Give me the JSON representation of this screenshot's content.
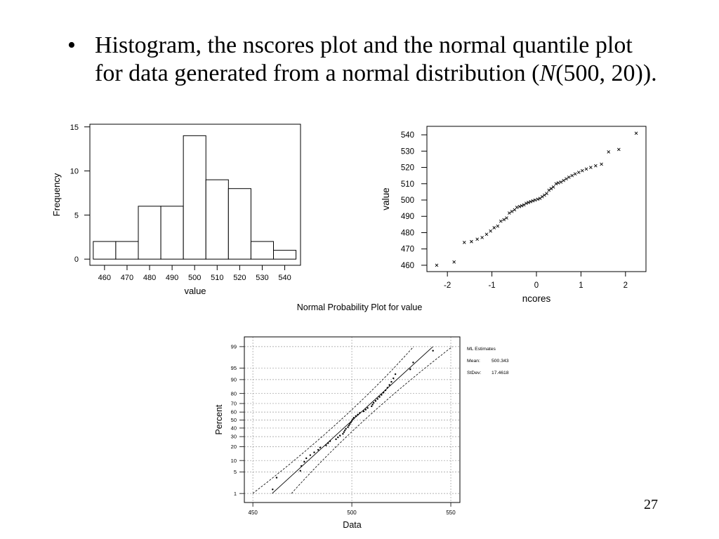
{
  "slide": {
    "bullet": "•",
    "line1": "Histogram, the nscores plot and the normal quantile plot",
    "line2_pre": "for data generated from a normal distribution (",
    "line2_italic": "N",
    "line2_post": "(500, 20)).",
    "page_number": "27"
  },
  "chart_data": [
    {
      "type": "bar",
      "categories": [
        "460",
        "470",
        "480",
        "490",
        "500",
        "510",
        "520",
        "530",
        "540"
      ],
      "values": [
        2,
        2,
        6,
        6,
        14,
        9,
        8,
        2,
        1
      ],
      "bin_width": 10,
      "xlabel": "value",
      "ylabel": "Frequency",
      "yticks": [
        0,
        5,
        10,
        15
      ],
      "xlim": [
        453.5,
        547
      ],
      "ylim": [
        -0.7,
        15.3
      ],
      "grid": false
    },
    {
      "type": "scatter",
      "x": [
        -2.24,
        -1.85,
        -1.62,
        -1.46,
        -1.33,
        -1.22,
        -1.12,
        -1.03,
        -0.95,
        -0.87,
        -0.8,
        -0.73,
        -0.67,
        -0.61,
        -0.55,
        -0.49,
        -0.44,
        -0.38,
        -0.33,
        -0.28,
        -0.23,
        -0.18,
        -0.13,
        -0.08,
        -0.03,
        0.03,
        0.08,
        0.13,
        0.18,
        0.23,
        0.28,
        0.33,
        0.38,
        0.44,
        0.49,
        0.55,
        0.61,
        0.67,
        0.73,
        0.8,
        0.87,
        0.95,
        1.03,
        1.12,
        1.22,
        1.33,
        1.46,
        1.62,
        1.85,
        2.24
      ],
      "y": [
        460,
        462,
        474,
        474.5,
        476,
        477,
        479,
        481,
        483,
        484,
        487,
        488,
        489,
        492,
        493,
        494,
        495.5,
        496,
        496.5,
        497,
        498,
        498.5,
        499,
        499.5,
        500,
        500.5,
        501,
        502,
        503,
        504,
        506,
        507,
        508,
        510,
        510.5,
        511,
        512,
        513,
        514,
        515,
        516,
        517,
        518,
        519,
        520,
        521,
        522,
        529.5,
        531,
        541
      ],
      "xlabel": "ncores",
      "ylabel": "value",
      "xticks": [
        -2,
        -1,
        0,
        1,
        2
      ],
      "yticks": [
        460,
        470,
        480,
        490,
        500,
        510,
        520,
        530,
        540
      ],
      "xlim": [
        -2.46,
        2.46
      ],
      "ylim": [
        456.1,
        545.2
      ],
      "grid": false
    },
    {
      "type": "scatter",
      "title": "Normal Probability Plot for value",
      "x": [
        460,
        462,
        474,
        474.5,
        476,
        477,
        479,
        481,
        483,
        484,
        487,
        488,
        489,
        492,
        493,
        494,
        495.5,
        496,
        496.5,
        497,
        498,
        498.5,
        499,
        499.5,
        500,
        500.5,
        501,
        502,
        503,
        504,
        506,
        507,
        508,
        510,
        510.5,
        511,
        512,
        513,
        514,
        515,
        516,
        517,
        518,
        519,
        520,
        521,
        522,
        529.5,
        531,
        541
      ],
      "y": [
        1.4,
        3.4,
        5.4,
        7.3,
        9.3,
        11.3,
        13.3,
        15.3,
        17.3,
        19.2,
        21.2,
        23.2,
        25.2,
        27.2,
        29.2,
        31.2,
        33.1,
        35.1,
        37.1,
        39.1,
        41.1,
        43.1,
        45.0,
        47.0,
        49.0,
        51.0,
        53.0,
        55.0,
        56.9,
        58.9,
        60.9,
        62.9,
        64.9,
        66.9,
        68.8,
        70.8,
        72.8,
        74.8,
        76.8,
        78.8,
        80.8,
        82.7,
        84.7,
        86.7,
        88.7,
        90.7,
        92.7,
        94.6,
        96.6,
        98.6
      ],
      "xlabel": "Data",
      "ylabel": "Percent",
      "xticks": [
        450,
        500,
        550
      ],
      "yticks": [
        1,
        5,
        10,
        20,
        30,
        40,
        50,
        60,
        70,
        80,
        90,
        95,
        99
      ],
      "xlim": [
        445.7,
        554.6
      ],
      "ylim": [
        0.45,
        99.58
      ],
      "yscale": "normal probability",
      "grid": true,
      "fit": {
        "mean": 500.343,
        "stdev": 17.4618
      },
      "confidence_bands": true,
      "legend": {
        "title": "ML Estimates",
        "position": "right",
        "rows": [
          {
            "label": "Mean:",
            "value": "500.343"
          },
          {
            "label": "StDev:",
            "value": "17.4618"
          }
        ]
      }
    }
  ]
}
